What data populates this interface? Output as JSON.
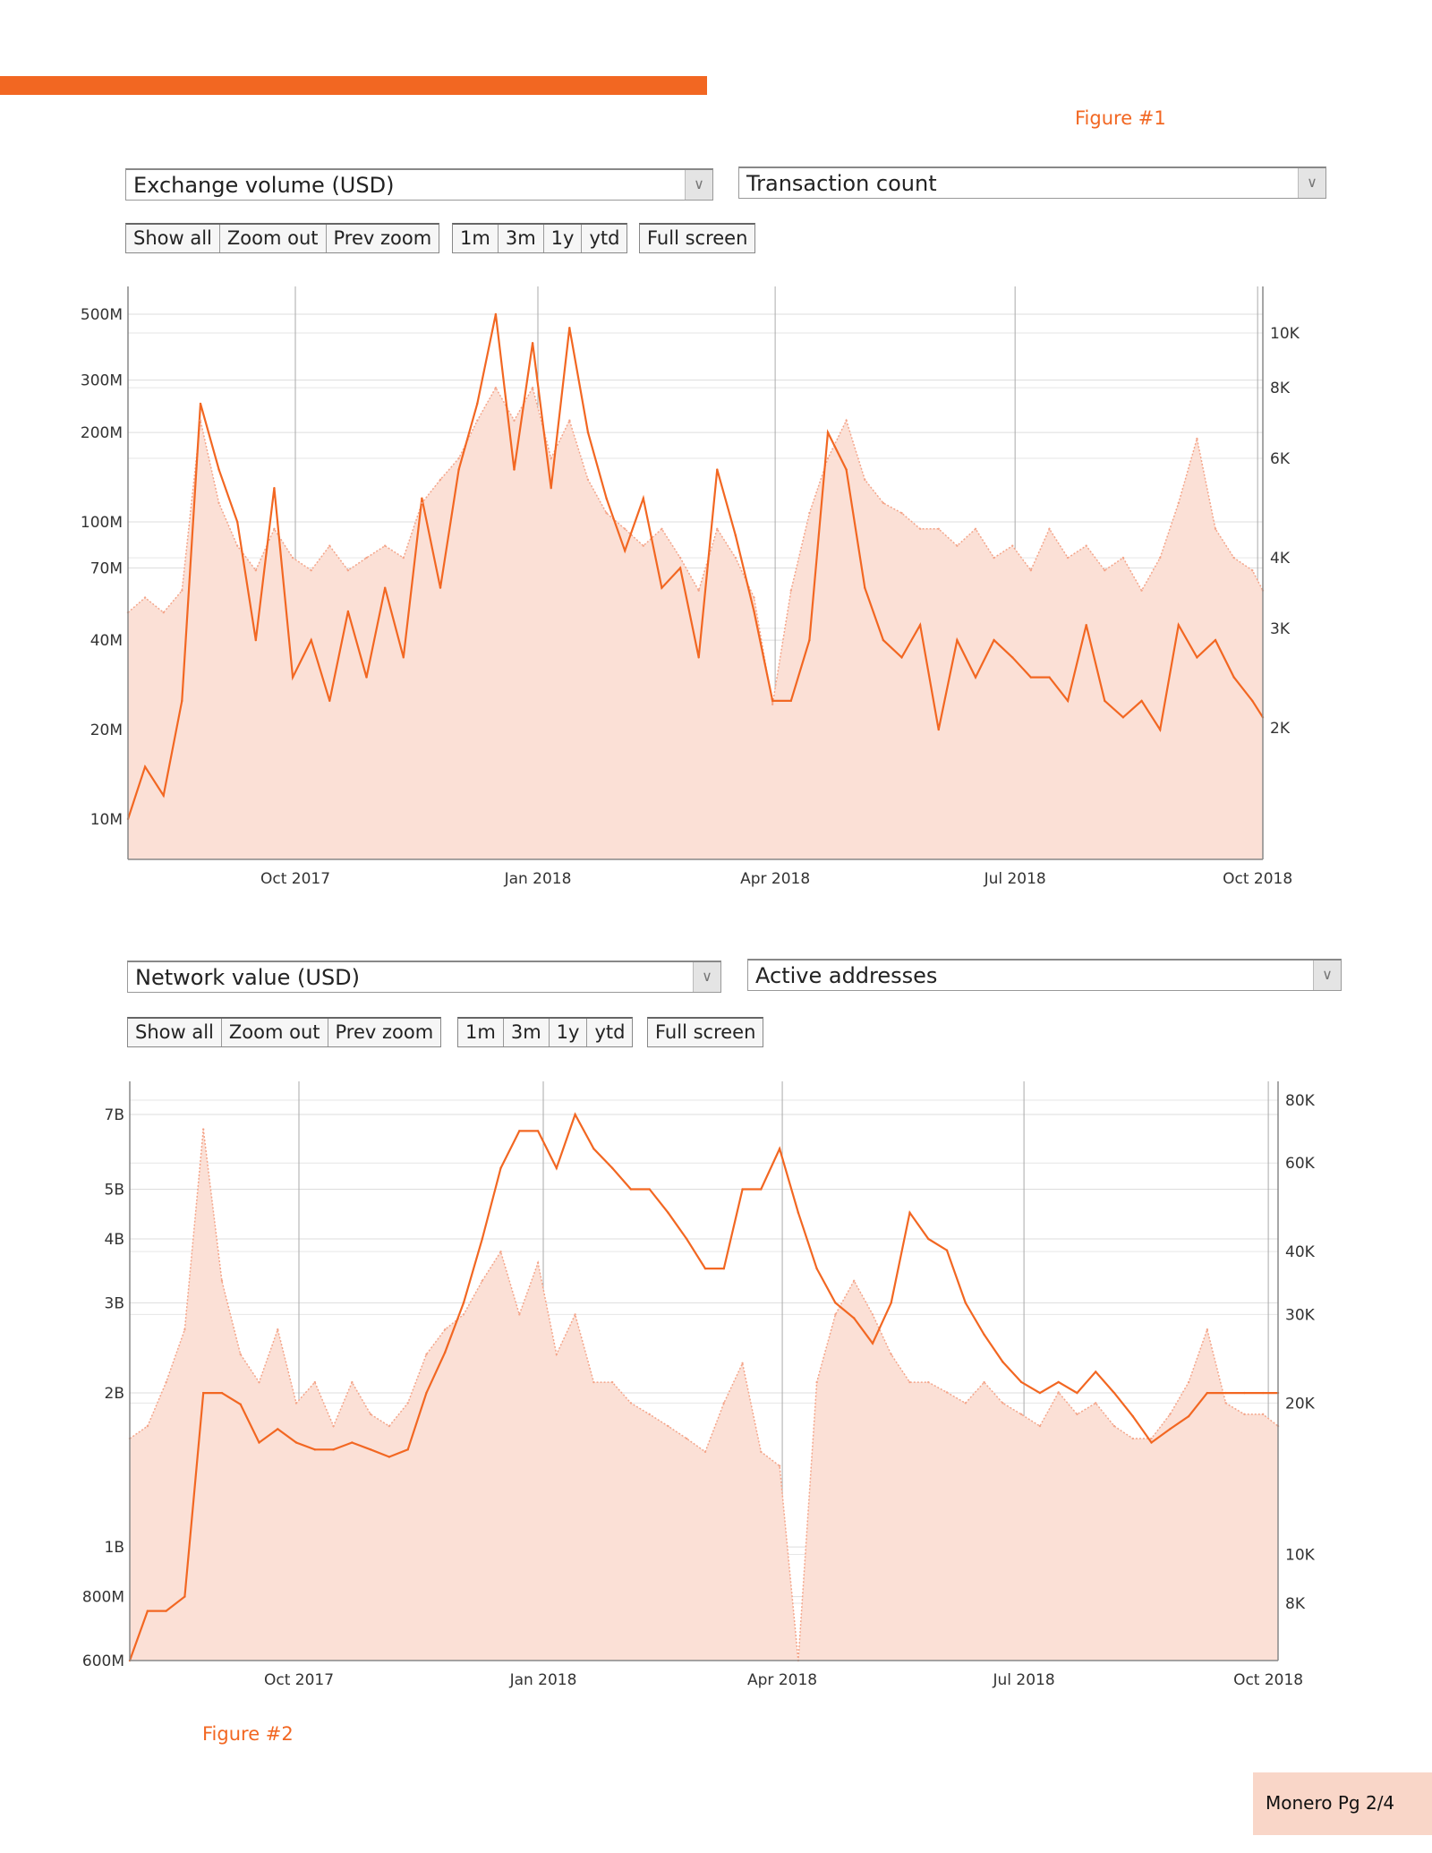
{
  "figure1_label": "Figure #1",
  "figure2_label": "Figure #2",
  "footer": "Monero Pg 2/4",
  "colors": {
    "accent": "#f26722",
    "area_fill": "#fbe0d6",
    "area_line": "#f4a58a"
  },
  "charts": [
    {
      "left_select": "Exchange volume (USD)",
      "right_select": "Transaction count",
      "buttons": {
        "show_all": "Show all",
        "zoom_out": "Zoom out",
        "prev_zoom": "Prev zoom",
        "m1": "1m",
        "m3": "3m",
        "y1": "1y",
        "ytd": "ytd",
        "full_screen": "Full screen"
      }
    },
    {
      "left_select": "Network value (USD)",
      "right_select": "Active addresses",
      "buttons": {
        "show_all": "Show all",
        "zoom_out": "Zoom out",
        "prev_zoom": "Prev zoom",
        "m1": "1m",
        "m3": "3m",
        "y1": "1y",
        "ytd": "ytd",
        "full_screen": "Full screen"
      }
    }
  ],
  "chart_data": [
    {
      "type": "line",
      "title": "Exchange volume (USD) vs Transaction count",
      "x_ticks": [
        "Oct 2017",
        "Jan 2018",
        "Apr 2018",
        "Jul 2018",
        "Oct 2018"
      ],
      "x_tick_dates": [
        "2017-10-01",
        "2018-01-01",
        "2018-04-01",
        "2018-07-01",
        "2018-10-01"
      ],
      "xlim": [
        "2017-07-29",
        "2018-10-03"
      ],
      "left_axis": {
        "scale": "log",
        "ticks": [
          500000000.0,
          300000000.0,
          200000000.0,
          100000000.0,
          70000000.0,
          40000000.0,
          20000000.0,
          10000000.0
        ],
        "tick_labels": [
          "500M",
          "300M",
          "200M",
          "100M",
          "70M",
          "40M",
          "20M",
          "10M"
        ],
        "ylim": [
          10000000.0,
          500000000.0
        ]
      },
      "right_axis": {
        "scale": "log",
        "ticks": [
          10000,
          8000,
          6000,
          4000,
          3000,
          2000
        ],
        "tick_labels": [
          "10K",
          "8K",
          "6K",
          "4K",
          "3K",
          "2K"
        ],
        "ylim": [
          2000,
          10000
        ]
      },
      "start_date": "2017-07-29",
      "step_days": 7,
      "series": [
        {
          "name": "Exchange volume (USD)",
          "axis": "left",
          "style": "solid line",
          "values": [
            10000000.0,
            15000000.0,
            12000000.0,
            25000000.0,
            250000000.0,
            150000000.0,
            100000000.0,
            40000000.0,
            130000000.0,
            30000000.0,
            40000000.0,
            25000000.0,
            50000000.0,
            30000000.0,
            60000000.0,
            35000000.0,
            120000000.0,
            60000000.0,
            150000000.0,
            250000000.0,
            500000000.0,
            150000000.0,
            400000000.0,
            130000000.0,
            450000000.0,
            200000000.0,
            120000000.0,
            80000000.0,
            120000000.0,
            60000000.0,
            70000000.0,
            35000000.0,
            150000000.0,
            90000000.0,
            50000000.0,
            25000000.0,
            25000000.0,
            40000000.0,
            200000000.0,
            150000000.0,
            60000000.0,
            40000000.0,
            35000000.0,
            45000000.0,
            20000000.0,
            40000000.0,
            30000000.0,
            40000000.0,
            35000000.0,
            30000000.0,
            30000000.0,
            25000000.0,
            45000000.0,
            25000000.0,
            22000000.0,
            25000000.0,
            20000000.0,
            45000000.0,
            35000000.0,
            40000000.0,
            30000000.0,
            25000000.0,
            22000000.0
          ]
        },
        {
          "name": "Transaction count",
          "axis": "right",
          "style": "dotted area",
          "values": [
            3200,
            3400,
            3200,
            3500,
            7000,
            5000,
            4200,
            3800,
            4500,
            4000,
            3800,
            4200,
            3800,
            4000,
            4200,
            4000,
            5000,
            5500,
            6000,
            7000,
            8000,
            7000,
            8000,
            6000,
            7000,
            5500,
            4800,
            4500,
            4200,
            4500,
            4000,
            3500,
            4500,
            4000,
            3400,
            2200,
            3500,
            4800,
            6000,
            7000,
            5500,
            5000,
            4800,
            4500,
            4500,
            4200,
            4500,
            4000,
            4200,
            3800,
            4500,
            4000,
            4200,
            3800,
            4000,
            3500,
            4000,
            5000,
            6500,
            4500,
            4000,
            3800,
            3500
          ]
        }
      ]
    },
    {
      "type": "line",
      "title": "Network value (USD) vs Active addresses",
      "x_ticks": [
        "Oct 2017",
        "Jan 2018",
        "Apr 2018",
        "Jul 2018",
        "Oct 2018"
      ],
      "x_tick_dates": [
        "2017-10-01",
        "2018-01-01",
        "2018-04-01",
        "2018-07-01",
        "2018-10-01"
      ],
      "xlim": [
        "2017-07-29",
        "2018-10-03"
      ],
      "left_axis": {
        "scale": "log",
        "ticks": [
          7000000000.0,
          5000000000.0,
          4000000000.0,
          3000000000.0,
          2000000000.0,
          1000000000.0,
          800000000.0,
          600000000.0
        ],
        "tick_labels": [
          "7B",
          "5B",
          "4B",
          "3B",
          "2B",
          "1B",
          "800M",
          "600M"
        ],
        "ylim": [
          600000000.0,
          7000000000.0
        ]
      },
      "right_axis": {
        "scale": "log",
        "ticks": [
          80000,
          60000,
          40000,
          30000,
          20000,
          10000,
          8000
        ],
        "tick_labels": [
          "80K",
          "60K",
          "40K",
          "30K",
          "20K",
          "10K",
          "8K"
        ],
        "ylim": [
          8000,
          80000
        ]
      },
      "start_date": "2017-07-29",
      "step_days": 7,
      "series": [
        {
          "name": "Network value (USD)",
          "axis": "left",
          "style": "solid line",
          "values": [
            600000000.0,
            750000000.0,
            750000000.0,
            800000000.0,
            2000000000.0,
            2000000000.0,
            1900000000.0,
            1600000000.0,
            1700000000.0,
            1600000000.0,
            1550000000.0,
            1550000000.0,
            1600000000.0,
            1550000000.0,
            1500000000.0,
            1550000000.0,
            2000000000.0,
            2400000000.0,
            3000000000.0,
            4000000000.0,
            5500000000.0,
            6500000000.0,
            6500000000.0,
            5500000000.0,
            7000000000.0,
            6000000000.0,
            5500000000.0,
            5000000000.0,
            5000000000.0,
            4500000000.0,
            4000000000.0,
            3500000000.0,
            3500000000.0,
            5000000000.0,
            5000000000.0,
            6000000000.0,
            4500000000.0,
            3500000000.0,
            3000000000.0,
            2800000000.0,
            2500000000.0,
            3000000000.0,
            4500000000.0,
            4000000000.0,
            3800000000.0,
            3000000000.0,
            2600000000.0,
            2300000000.0,
            2100000000.0,
            2000000000.0,
            2100000000.0,
            2000000000.0,
            2200000000.0,
            2000000000.0,
            1800000000.0,
            1600000000.0,
            1700000000.0,
            1800000000.0,
            2000000000.0,
            2000000000.0,
            2000000000.0,
            2000000000.0,
            2000000000.0
          ]
        },
        {
          "name": "Active addresses",
          "axis": "right",
          "style": "dotted area",
          "values": [
            17000,
            18000,
            22000,
            28000,
            70000,
            35000,
            25000,
            22000,
            28000,
            20000,
            22000,
            18000,
            22000,
            19000,
            18000,
            20000,
            25000,
            28000,
            30000,
            35000,
            40000,
            30000,
            38000,
            25000,
            30000,
            22000,
            22000,
            20000,
            19000,
            18000,
            17000,
            16000,
            20000,
            24000,
            16000,
            15000,
            6000,
            22000,
            30000,
            35000,
            30000,
            25000,
            22000,
            22000,
            21000,
            20000,
            22000,
            20000,
            19000,
            18000,
            21000,
            19000,
            20000,
            18000,
            17000,
            17000,
            19000,
            22000,
            28000,
            20000,
            19000,
            19000,
            18000
          ]
        }
      ]
    }
  ]
}
